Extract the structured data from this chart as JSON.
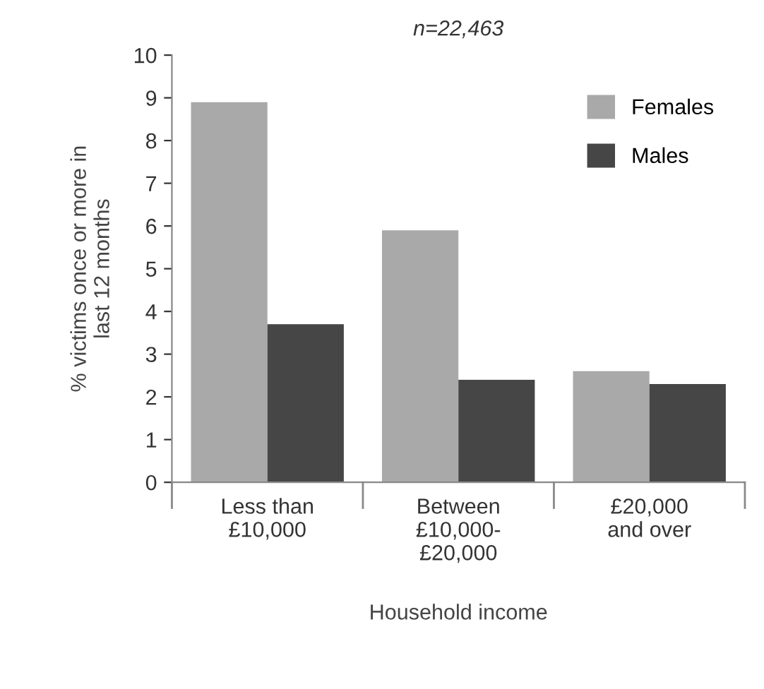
{
  "chart_data": {
    "type": "bar",
    "title": "n=22,463",
    "xlabel": "Household income",
    "ylabel": "% victims once or more in\nlast 12 months",
    "categories": [
      "Less than\n£10,000",
      "Between\n£10,000-\n£20,000",
      "£20,000\nand over"
    ],
    "series": [
      {
        "name": "Females",
        "color": "#a9a9a9",
        "values": [
          8.9,
          5.9,
          2.6
        ]
      },
      {
        "name": "Males",
        "color": "#464646",
        "values": [
          3.7,
          2.4,
          2.3
        ]
      }
    ],
    "ylim": [
      0,
      10
    ],
    "yticks": [
      0,
      1,
      2,
      3,
      4,
      5,
      6,
      7,
      8,
      9,
      10
    ],
    "grid": false,
    "legend": "top right"
  }
}
